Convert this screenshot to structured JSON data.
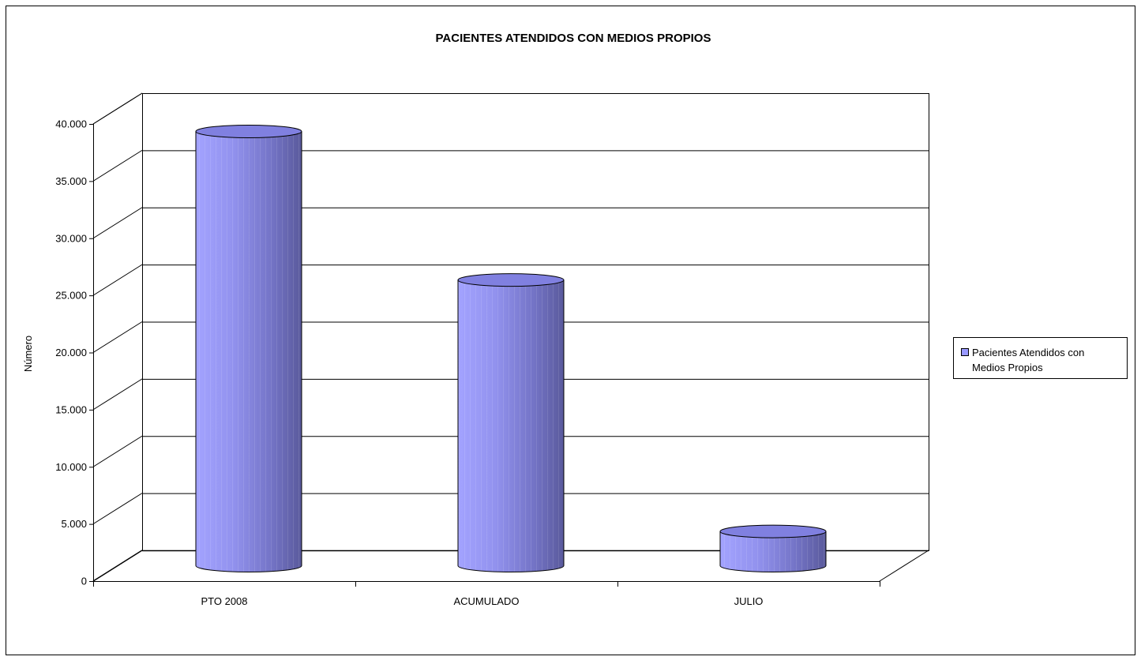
{
  "chart_data": {
    "type": "bar",
    "style": "3d-cylinder",
    "title": "PACIENTES ATENDIDOS CON MEDIOS PROPIOS",
    "xlabel": "",
    "ylabel": "Número",
    "categories": [
      "PTO 2008",
      "ACUMULADO",
      "JULIO"
    ],
    "series": [
      {
        "name": "Pacientes Atendidos con Medios Propios",
        "values": [
          38000,
          25000,
          3000
        ],
        "color": "#9999ff"
      }
    ],
    "ylim": [
      0,
      40000
    ],
    "yticks": [
      {
        "value": 0,
        "label": "0"
      },
      {
        "value": 5000,
        "label": "5.000"
      },
      {
        "value": 10000,
        "label": "10.000"
      },
      {
        "value": 15000,
        "label": "15.000"
      },
      {
        "value": 20000,
        "label": "20.000"
      },
      {
        "value": 25000,
        "label": "25.000"
      },
      {
        "value": 30000,
        "label": "30.000"
      },
      {
        "value": 35000,
        "label": "35.000"
      },
      {
        "value": 40000,
        "label": "40.000"
      }
    ],
    "grid": true,
    "legend": {
      "position": "right",
      "lines": [
        "Pacientes Atendidos con",
        "Medios Propios"
      ]
    }
  }
}
